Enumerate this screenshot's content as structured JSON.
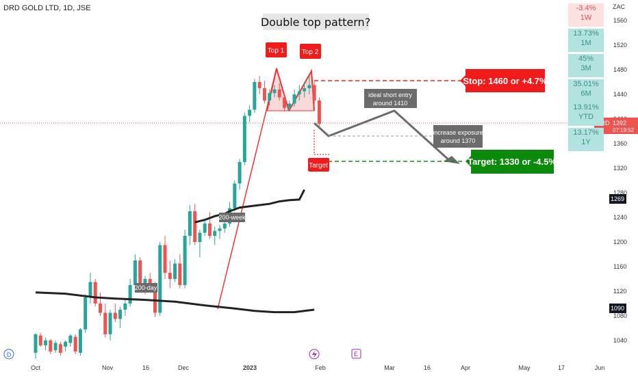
{
  "header": {
    "symbol": "DRD GOLD LTD, 1D, JSE",
    "currency": "ZAC"
  },
  "colors": {
    "up": "#26a69a",
    "down": "#ef5350",
    "ma": "#222222",
    "target_green": "#0c8a0c",
    "stop_red": "#f21b1b",
    "perf_down": "#fde0e0",
    "perf_up": "#b2e3df"
  },
  "performance": [
    {
      "value": "-3.4%",
      "period": "1W"
    },
    {
      "value": "13.73%",
      "period": "1M"
    },
    {
      "value": "45%",
      "period": "3M"
    },
    {
      "value": "35.01%",
      "period": "6M"
    },
    {
      "value": "13.91%",
      "period": "YTD"
    },
    {
      "value": "13.17%",
      "period": "1Y"
    }
  ],
  "annotations": {
    "title": "Double top pattern?",
    "top1": "Top 1",
    "top2": "Top 2",
    "stop": "Stop: 1460 or +4.7%",
    "target": "Target: 1330 or -4.5%",
    "target_small": "Target",
    "ideal_entry": [
      "ideal short entry",
      "around 1410"
    ],
    "increase": [
      "increase exposure",
      "around 1370"
    ],
    "ma200w": "200-week",
    "ma200d": "200-day",
    "event_d": "D",
    "event_e": "E"
  },
  "price_tags": {
    "symbol": "DRD",
    "last": "1392",
    "countdown": "07:19:52",
    "ma200w": "1269",
    "ma200d": "1090"
  },
  "chart_data": {
    "type": "candlestick",
    "title": "DRD GOLD LTD, 1D, JSE",
    "xlabel": "",
    "ylabel": "ZAC",
    "ylim": [
      1010,
      1575
    ],
    "x_tick_labels": [
      "Oct",
      "Nov",
      "16",
      "Dec",
      "2023",
      "Feb",
      "Mar",
      "16",
      "Apr",
      "May",
      "17",
      "Jun"
    ],
    "y_tick_labels": [
      "1040",
      "1080",
      "1120",
      "1160",
      "1200",
      "1240",
      "1280",
      "1320",
      "1360",
      "1400",
      "1440",
      "1480",
      "1520",
      "1560"
    ],
    "series": [
      {
        "name": "DRD",
        "ohlc": [
          [
            1020,
            1052,
            1010,
            1050
          ],
          [
            1048,
            1052,
            1030,
            1032
          ],
          [
            1032,
            1045,
            1024,
            1040
          ],
          [
            1040,
            1042,
            1018,
            1022
          ],
          [
            1024,
            1040,
            1020,
            1036
          ],
          [
            1034,
            1038,
            1015,
            1020
          ],
          [
            1030,
            1040,
            1022,
            1038
          ],
          [
            1036,
            1050,
            1030,
            1048
          ],
          [
            1046,
            1050,
            1018,
            1022
          ],
          [
            1020,
            1060,
            1015,
            1058
          ],
          [
            1058,
            1115,
            1052,
            1110
          ],
          [
            1110,
            1150,
            1100,
            1135
          ],
          [
            1135,
            1140,
            1095,
            1100
          ],
          [
            1100,
            1118,
            1080,
            1085
          ],
          [
            1085,
            1100,
            1045,
            1050
          ],
          [
            1050,
            1090,
            1040,
            1085
          ],
          [
            1085,
            1100,
            1070,
            1075
          ],
          [
            1075,
            1095,
            1060,
            1090
          ],
          [
            1090,
            1108,
            1080,
            1100
          ],
          [
            1100,
            1140,
            1095,
            1130
          ],
          [
            1130,
            1180,
            1120,
            1170
          ],
          [
            1170,
            1175,
            1125,
            1130
          ],
          [
            1130,
            1145,
            1115,
            1140
          ],
          [
            1140,
            1150,
            1120,
            1128
          ],
          [
            1128,
            1135,
            1078,
            1085
          ],
          [
            1085,
            1200,
            1080,
            1195
          ],
          [
            1195,
            1210,
            1140,
            1150
          ],
          [
            1150,
            1170,
            1125,
            1140
          ],
          [
            1140,
            1172,
            1135,
            1165
          ],
          [
            1165,
            1180,
            1125,
            1130
          ],
          [
            1130,
            1220,
            1125,
            1210
          ],
          [
            1210,
            1260,
            1195,
            1250
          ],
          [
            1250,
            1262,
            1195,
            1200
          ],
          [
            1200,
            1220,
            1175,
            1215
          ],
          [
            1215,
            1235,
            1210,
            1230
          ],
          [
            1230,
            1248,
            1205,
            1210
          ],
          [
            1210,
            1225,
            1195,
            1218
          ],
          [
            1218,
            1228,
            1205,
            1222
          ],
          [
            1222,
            1235,
            1215,
            1230
          ],
          [
            1230,
            1265,
            1225,
            1255
          ],
          [
            1255,
            1300,
            1250,
            1295
          ],
          [
            1295,
            1335,
            1285,
            1330
          ],
          [
            1330,
            1410,
            1325,
            1405
          ],
          [
            1405,
            1422,
            1395,
            1415
          ],
          [
            1415,
            1465,
            1410,
            1460
          ],
          [
            1460,
            1470,
            1440,
            1450
          ],
          [
            1450,
            1462,
            1425,
            1430
          ],
          [
            1430,
            1448,
            1422,
            1442
          ],
          [
            1442,
            1455,
            1435,
            1448
          ],
          [
            1448,
            1458,
            1430,
            1435
          ],
          [
            1435,
            1440,
            1412,
            1418
          ],
          [
            1418,
            1430,
            1412,
            1425
          ],
          [
            1425,
            1448,
            1420,
            1440
          ],
          [
            1440,
            1455,
            1430,
            1445
          ],
          [
            1445,
            1460,
            1435,
            1450
          ],
          [
            1450,
            1470,
            1440,
            1455
          ],
          [
            1455,
            1462,
            1425,
            1430
          ],
          [
            1430,
            1435,
            1385,
            1392
          ]
        ]
      },
      {
        "name": "200-week",
        "points": [
          [
            1232,
            32
          ],
          [
            1236,
            34
          ],
          [
            1242,
            36
          ],
          [
            1246,
            38
          ],
          [
            1250,
            39
          ],
          [
            1256,
            41
          ],
          [
            1259,
            44
          ],
          [
            1262,
            47
          ],
          [
            1266,
            49
          ],
          [
            1268,
            51
          ],
          [
            1269,
            53
          ],
          [
            1285,
            54
          ]
        ]
      },
      {
        "name": "200-day",
        "points": [
          [
            1118,
            0
          ],
          [
            1116,
            6
          ],
          [
            1110,
            12
          ],
          [
            1108,
            16
          ],
          [
            1106,
            22
          ],
          [
            1103,
            28
          ],
          [
            1097,
            34
          ],
          [
            1092,
            40
          ],
          [
            1088,
            44
          ],
          [
            1086,
            48
          ],
          [
            1086,
            52
          ],
          [
            1088,
            54
          ],
          [
            1090,
            56
          ]
        ]
      }
    ]
  }
}
